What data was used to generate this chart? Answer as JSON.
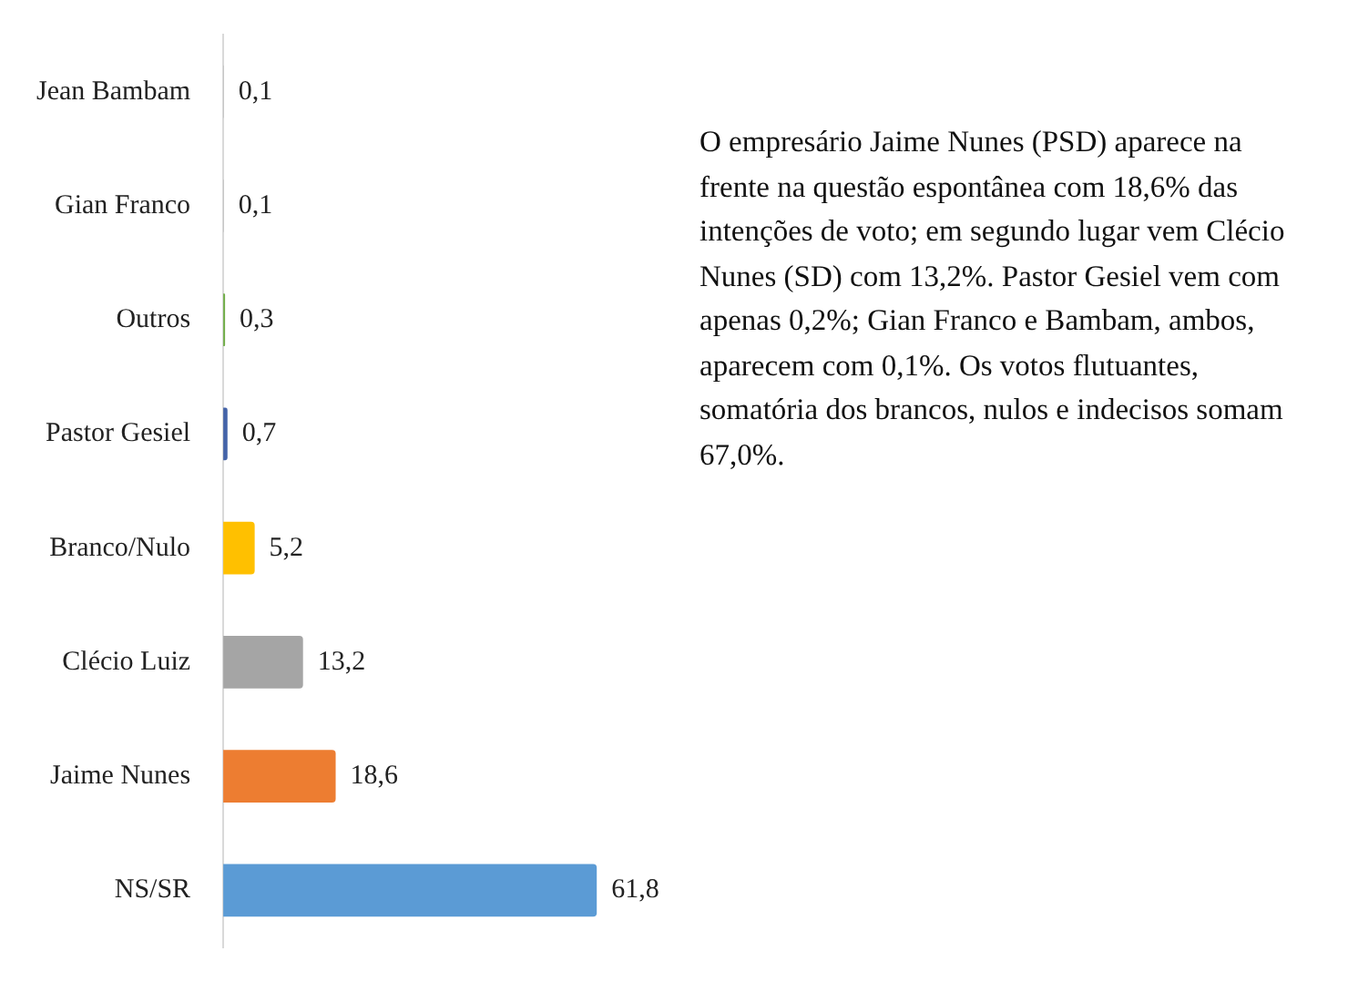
{
  "chart_data": {
    "type": "bar",
    "orientation": "horizontal",
    "categories": [
      "Jean Bambam",
      "Gian Franco",
      "Outros",
      "Pastor Gesiel",
      "Branco/Nulo",
      "Clécio Luiz",
      "Jaime Nunes",
      "NS/SR"
    ],
    "values": [
      0.1,
      0.1,
      0.3,
      0.7,
      5.2,
      13.2,
      18.6,
      61.8
    ],
    "colors": [
      "#bfbfbf",
      "#bfbfbf",
      "#70ad47",
      "#4463a8",
      "#ffc000",
      "#a5a5a5",
      "#ed7d31",
      "#5b9bd5"
    ],
    "value_labels": [
      "0,1",
      "0,1",
      "0,3",
      "0,7",
      "5,2",
      "13,2",
      "18,6",
      "61,8"
    ],
    "annotations": [
      "O empresário Jaime Nunes (PSD) aparece na frente na questão espontânea com 18,6% das intenções de voto; em segundo lugar vem Clécio Nunes (SD) com 13,2%. Pastor Gesiel vem com apenas 0,2%; Gian Franco e Bambam, ambos, aparecem com 0,1%. Os votos flutuantes, somatória dos brancos, nulos e indecisos somam 67,0%."
    ],
    "grid": false,
    "legend": false
  }
}
